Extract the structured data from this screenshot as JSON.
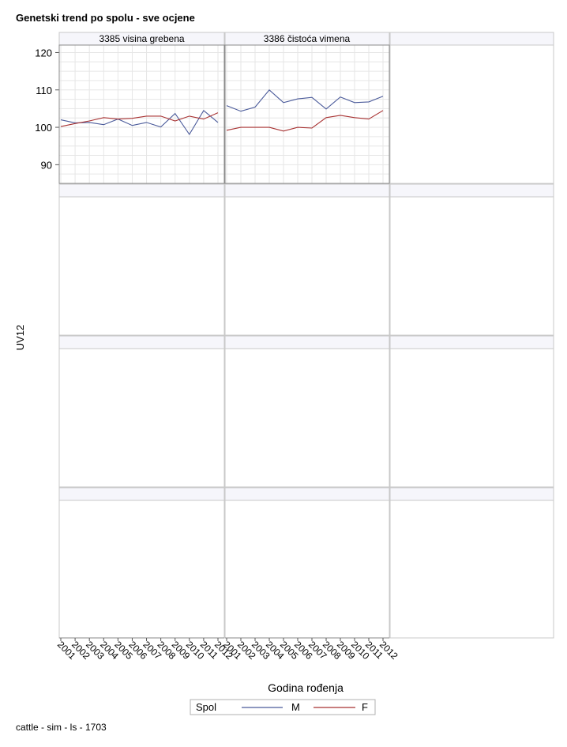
{
  "title": "Genetski trend po spolu - sve ocjene",
  "footer": "cattle - sim - ls - 1703",
  "chart_data": {
    "type": "line",
    "ylabel": "UV12",
    "xlabel": "Godina rođenja",
    "ylim": [
      85,
      122
    ],
    "yticks": [
      90,
      100,
      110,
      120
    ],
    "x": [
      2001,
      2002,
      2003,
      2004,
      2005,
      2006,
      2007,
      2008,
      2009,
      2010,
      2011,
      2012
    ],
    "legend": {
      "title": "Spol",
      "placement": "bottom"
    },
    "grid": true,
    "panels": [
      {
        "label": "3385 visina grebena",
        "series": [
          {
            "name": "M",
            "color": "#4a5a9a",
            "values": [
              102,
              101.2,
              101.3,
              100.7,
              102.2,
              100.5,
              101.3,
              100.1,
              103.7,
              98.1,
              104.5,
              101.3
            ]
          },
          {
            "name": "F",
            "color": "#a83232",
            "values": [
              100.2,
              101,
              101.7,
              102.6,
              102.2,
              102.4,
              103,
              103,
              101.7,
              103,
              102.2,
              103.9
            ]
          }
        ]
      },
      {
        "label": "3386 čistoća vimena",
        "series": [
          {
            "name": "M",
            "color": "#4a5a9a",
            "values": [
              105.8,
              104.3,
              105.4,
              110,
              106.6,
              107.6,
              108,
              104.9,
              108.1,
              106.6,
              106.8,
              108.3
            ]
          },
          {
            "name": "F",
            "color": "#a83232",
            "values": [
              99.2,
              100,
              100,
              100,
              99,
              100,
              99.8,
              102.6,
              103.2,
              102.6,
              102.2,
              104.5
            ]
          }
        ]
      }
    ]
  }
}
